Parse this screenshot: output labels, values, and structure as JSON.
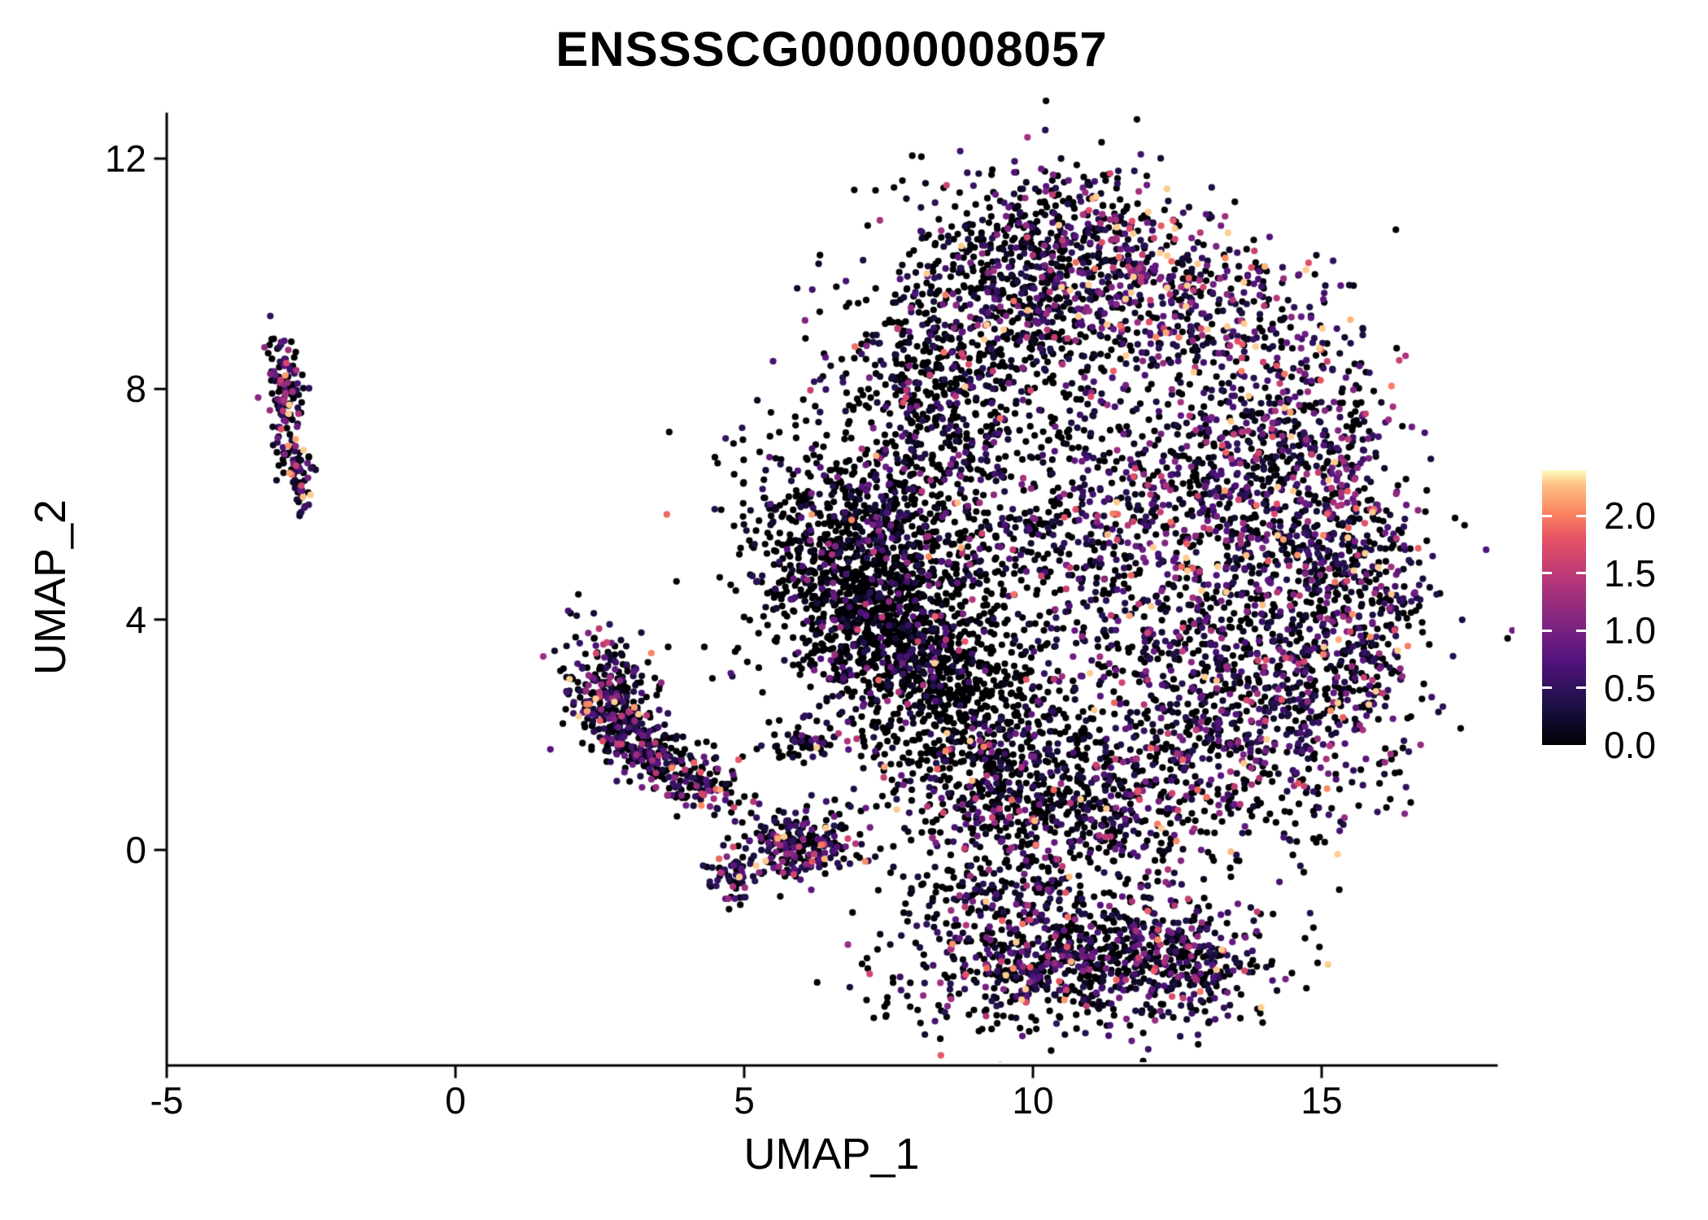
{
  "chart_data": {
    "type": "scatter",
    "title": "ENSSSCG00000008057",
    "xlabel": "UMAP_1",
    "ylabel": "UMAP_2",
    "xlim": [
      -5,
      18
    ],
    "ylim": [
      -3.7,
      12.8
    ],
    "x_ticks": [
      -5,
      0,
      5,
      10,
      15
    ],
    "y_ticks": [
      0,
      4,
      8,
      12
    ],
    "grid": false,
    "point_radius": 4.1,
    "seed": 7,
    "colorbar": {
      "ticks": [
        2.0,
        1.5,
        1.0,
        0.5,
        0.0
      ],
      "tick_labels": [
        "2.0",
        "1.5",
        "1.0",
        "0.5",
        "0.0"
      ],
      "vmin": 0,
      "vmax": 2.4,
      "colormap": "magma",
      "stops": [
        [
          0.0,
          "#000004"
        ],
        [
          0.15,
          "#1d1147"
        ],
        [
          0.3,
          "#51127c"
        ],
        [
          0.45,
          "#822681"
        ],
        [
          0.6,
          "#b63679"
        ],
        [
          0.75,
          "#e65164"
        ],
        [
          0.85,
          "#fb8861"
        ],
        [
          0.95,
          "#fec287"
        ],
        [
          1.0,
          "#fcfdbf"
        ]
      ]
    },
    "clusters": [
      {
        "name": "left-islet-top",
        "n": 115,
        "cx": -2.95,
        "cy": 8.0,
        "sx": 0.15,
        "sy": 0.42,
        "rot": 0.1,
        "p0": 0.45,
        "scale": 0.7
      },
      {
        "name": "left-islet-bottom",
        "n": 75,
        "cx": -2.75,
        "cy": 6.6,
        "sx": 0.13,
        "sy": 0.35,
        "rot": 0.25,
        "p0": 0.45,
        "scale": 0.7
      },
      {
        "name": "midleft-head",
        "n": 270,
        "cx": 2.65,
        "cy": 2.75,
        "sx": 0.35,
        "sy": 0.5,
        "rot": 0.3,
        "p0": 0.45,
        "scale": 0.65
      },
      {
        "name": "midleft-arm",
        "n": 200,
        "cx": 3.4,
        "cy": 1.7,
        "sx": 0.55,
        "sy": 0.3,
        "rot": -0.55,
        "p0": 0.5,
        "scale": 0.6
      },
      {
        "name": "midleft-tail",
        "n": 85,
        "cx": 4.3,
        "cy": 1.05,
        "sx": 0.45,
        "sy": 0.2,
        "rot": -0.3,
        "p0": 0.5,
        "scale": 0.6
      },
      {
        "name": "midleft-arm2",
        "n": 60,
        "cx": 6.0,
        "cy": 1.9,
        "sx": 0.4,
        "sy": 0.18,
        "rot": 0.05,
        "p0": 0.5,
        "scale": 0.6
      },
      {
        "name": "islet-zero",
        "n": 250,
        "cx": 5.9,
        "cy": 0.1,
        "sx": 0.5,
        "sy": 0.28,
        "rot": 0.15,
        "p0": 0.45,
        "scale": 0.65
      },
      {
        "name": "islet-spur",
        "n": 55,
        "cx": 4.75,
        "cy": -0.5,
        "sx": 0.22,
        "sy": 0.18,
        "rot": 0.0,
        "p0": 0.3,
        "scale": 0.85
      },
      {
        "name": "main-left-wedge",
        "n": 950,
        "cx": 6.9,
        "cy": 5.0,
        "sx": 0.95,
        "sy": 1.15,
        "rot": 0.3,
        "p0": 0.78,
        "scale": 0.45
      },
      {
        "name": "main-left-top",
        "n": 500,
        "cx": 8.3,
        "cy": 7.8,
        "sx": 1.0,
        "sy": 1.2,
        "rot": 0.0,
        "p0": 0.68,
        "scale": 0.5
      },
      {
        "name": "main-top",
        "n": 550,
        "cx": 9.8,
        "cy": 9.8,
        "sx": 1.1,
        "sy": 0.9,
        "rot": 0.0,
        "p0": 0.55,
        "scale": 0.55
      },
      {
        "name": "main-top-crown",
        "n": 150,
        "cx": 10.6,
        "cy": 11.0,
        "sx": 0.9,
        "sy": 0.4,
        "rot": 0.0,
        "p0": 0.55,
        "scale": 0.55
      },
      {
        "name": "main-topright-ridge",
        "n": 460,
        "cx": 12.2,
        "cy": 9.8,
        "sx": 1.25,
        "sy": 0.7,
        "rot": -0.25,
        "p0": 0.28,
        "scale": 0.8
      },
      {
        "name": "main-right-upper",
        "n": 600,
        "cx": 14.3,
        "cy": 7.0,
        "sx": 1.0,
        "sy": 1.3,
        "rot": 0.0,
        "p0": 0.4,
        "scale": 0.6
      },
      {
        "name": "main-right-edge",
        "n": 550,
        "cx": 15.4,
        "cy": 4.5,
        "sx": 0.7,
        "sy": 1.4,
        "rot": 0.0,
        "p0": 0.42,
        "scale": 0.6
      },
      {
        "name": "main-right-lower",
        "n": 650,
        "cx": 13.8,
        "cy": 2.3,
        "sx": 1.2,
        "sy": 1.2,
        "rot": 0.0,
        "p0": 0.45,
        "scale": 0.6
      },
      {
        "name": "main-bottom",
        "n": 800,
        "cx": 10.6,
        "cy": 0.9,
        "sx": 1.5,
        "sy": 1.0,
        "rot": 0.0,
        "p0": 0.58,
        "scale": 0.55
      },
      {
        "name": "main-diag-band",
        "n": 750,
        "cx": 8.7,
        "cy": 2.8,
        "sx": 0.8,
        "sy": 1.5,
        "rot": 0.5,
        "p0": 0.8,
        "scale": 0.4
      },
      {
        "name": "main-center",
        "n": 700,
        "cx": 10.3,
        "cy": 5.8,
        "sx": 1.9,
        "sy": 1.8,
        "rot": 0.0,
        "p0": 0.5,
        "scale": 0.55
      },
      {
        "name": "main-center-right",
        "n": 500,
        "cx": 12.3,
        "cy": 5.2,
        "sx": 1.4,
        "sy": 1.5,
        "rot": 0.0,
        "p0": 0.45,
        "scale": 0.6
      },
      {
        "name": "main-left-mid",
        "n": 350,
        "cx": 7.6,
        "cy": 3.7,
        "sx": 0.7,
        "sy": 0.9,
        "rot": 0.2,
        "p0": 0.75,
        "scale": 0.45
      },
      {
        "name": "bottom-lobe",
        "n": 650,
        "cx": 10.4,
        "cy": -2.0,
        "sx": 1.4,
        "sy": 0.55,
        "rot": 0.05,
        "p0": 0.55,
        "scale": 0.55
      },
      {
        "name": "bottom-lobe-right",
        "n": 280,
        "cx": 12.6,
        "cy": -1.9,
        "sx": 0.8,
        "sy": 0.5,
        "rot": 0.0,
        "p0": 0.45,
        "scale": 0.6
      },
      {
        "name": "bottom-neck",
        "n": 120,
        "cx": 9.3,
        "cy": -0.75,
        "sx": 0.8,
        "sy": 0.35,
        "rot": 0.0,
        "p0": 0.6,
        "scale": 0.5
      }
    ]
  }
}
